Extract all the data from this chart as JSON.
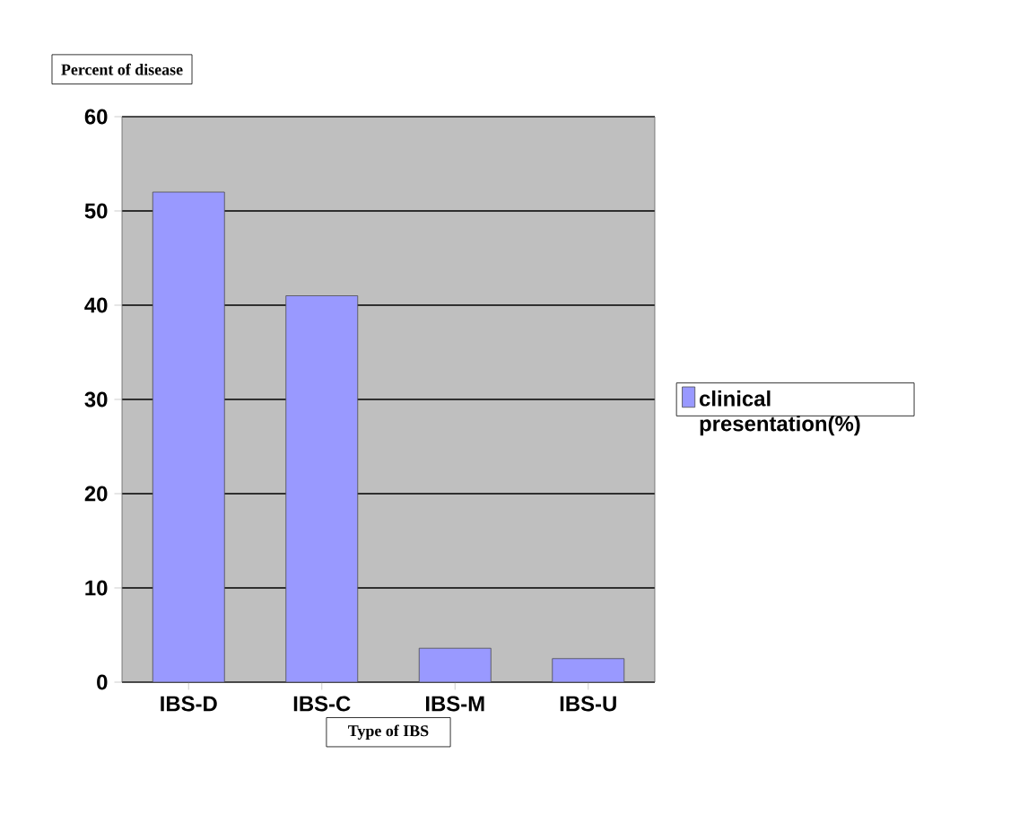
{
  "chart_data": {
    "type": "bar",
    "xlabel": "Type of IBS",
    "ylabel": "Percent of disease",
    "categories": [
      "IBS-D",
      "IBS-C",
      "IBS-M",
      "IBS-U"
    ],
    "series": [
      {
        "name": "clinical presentation(%)",
        "color": "#9999ff",
        "values": [
          52,
          41,
          3.6,
          2.5
        ]
      }
    ],
    "ylim": [
      0,
      60
    ],
    "yticks": [
      0,
      10,
      20,
      30,
      40,
      50,
      60
    ],
    "grid": "y",
    "legend": "right"
  }
}
